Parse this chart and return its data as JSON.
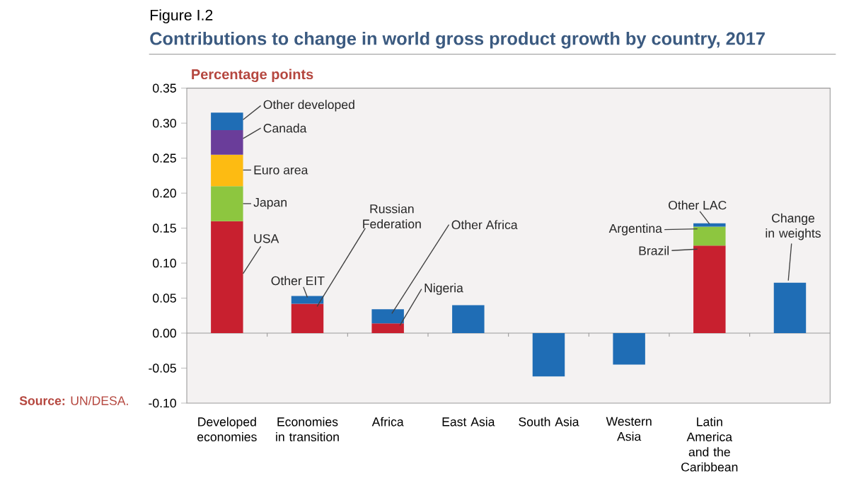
{
  "chart_data": {
    "type": "bar",
    "stacked": true,
    "title": "Contributions to change in world gross product growth by country, 2017",
    "subtitle": "Figure I.2",
    "ylabel": "Percentage points",
    "categories": [
      "Developed economies",
      "Economies in transition",
      "Africa",
      "East Asia",
      "South Asia",
      "Western Asia",
      "Latin America and the Caribbean",
      null
    ],
    "series": [
      {
        "color": "#c8202f",
        "values": [
          0.16,
          0.042,
          0.014,
          null,
          null,
          null,
          0.125,
          null
        ]
      },
      {
        "color": "#8dc63f",
        "values": [
          0.05,
          null,
          null,
          null,
          null,
          null,
          0.027,
          null
        ]
      },
      {
        "color": "#fdbb12",
        "values": [
          0.045,
          null,
          null,
          null,
          null,
          null,
          null,
          null
        ]
      },
      {
        "color": "#6a3d9a",
        "values": [
          0.035,
          null,
          null,
          null,
          null,
          null,
          null,
          null
        ]
      },
      {
        "color": "#1f6db5",
        "values": [
          0.025,
          0.011,
          0.02,
          0.04,
          -0.062,
          -0.045,
          0.005,
          0.072
        ]
      }
    ],
    "ylim": [
      -0.1,
      0.35
    ],
    "yticks": [
      {
        "value": -0.1,
        "label": "-0.10"
      },
      {
        "value": -0.05,
        "label": "-0.05"
      },
      {
        "value": 0,
        "label": "0.00"
      },
      {
        "value": 0.05,
        "label": "0.05"
      },
      {
        "value": 0.1,
        "label": "0.10"
      },
      {
        "value": 0.15,
        "label": "0.15"
      },
      {
        "value": 0.2,
        "label": "0.20"
      },
      {
        "value": 0.25,
        "label": "0.25"
      },
      {
        "value": 0.3,
        "label": "0.30"
      },
      {
        "value": 0.35,
        "label": "0.35"
      }
    ],
    "annotations": [
      {
        "text": "Other developed",
        "x": "Developed economies",
        "y": 0.315
      },
      {
        "text": "Canada",
        "x": "Developed economies",
        "y": 0.29
      },
      {
        "text": "Euro area",
        "x": "Developed economies",
        "y": 0.255
      },
      {
        "text": "Japan",
        "x": "Developed economies",
        "y": 0.21
      },
      {
        "text": "USA",
        "x": "Developed economies",
        "y": 0.16
      },
      {
        "text": "Other EIT",
        "x": "Economies in transition",
        "y": 0.053
      },
      {
        "text": "Russian Federation",
        "x": "Economies in transition",
        "y": 0.042
      },
      {
        "text": "Other Africa",
        "x": "Africa",
        "y": 0.034
      },
      {
        "text": "Nigeria",
        "x": "Africa",
        "y": 0.014
      },
      {
        "text": "Other LAC",
        "x": "Latin America and the Caribbean",
        "y": 0.157
      },
      {
        "text": "Argentina",
        "x": "Latin America and the Caribbean",
        "y": 0.152
      },
      {
        "text": "Brazil",
        "x": "Latin America and the Caribbean",
        "y": 0.125
      },
      {
        "text": "Change in weights",
        "y": 0.072
      },
      "**Source:** UN/DESA."
    ]
  }
}
